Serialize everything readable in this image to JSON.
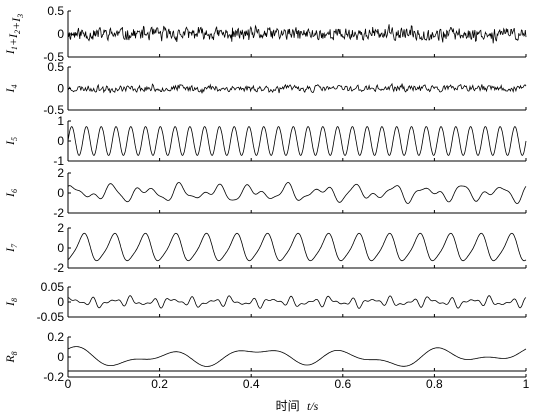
{
  "chart_data": {
    "type": "line",
    "xlabel": "时间",
    "xlabel_var": "t/s",
    "xlim": [
      0,
      1
    ],
    "x_ticks": [
      "0",
      "0.2",
      "0.4",
      "0.6",
      "0.8",
      "1"
    ],
    "x_tick_values": [
      0,
      0.2,
      0.4,
      0.6,
      0.8,
      1
    ],
    "grid": false,
    "panels": [
      {
        "ylabel": "I1+I2+I3",
        "ylabel_parts": [
          [
            "I",
            "1"
          ],
          [
            "+I",
            "2"
          ],
          [
            "+I",
            "3"
          ]
        ],
        "ylim": [
          -0.5,
          0.5
        ],
        "y_ticks": [
          "0.5",
          "0",
          "-0.5"
        ],
        "y_tick_values": [
          0.5,
          0,
          -0.5
        ],
        "signal": {
          "kind": "noise",
          "amplitude": 0.17,
          "n": 700,
          "seed": 11
        }
      },
      {
        "ylabel": "I4",
        "ylabel_parts": [
          [
            "I",
            "4"
          ]
        ],
        "ylim": [
          -0.5,
          0.5
        ],
        "y_ticks": [
          "0.5",
          "0",
          "-0.5"
        ],
        "y_tick_values": [
          0.5,
          0,
          -0.5
        ],
        "signal": {
          "kind": "noise",
          "amplitude": 0.1,
          "n": 500,
          "seed": 23
        }
      },
      {
        "ylabel": "I5",
        "ylabel_parts": [
          [
            "I",
            "5"
          ]
        ],
        "ylim": [
          -1,
          1
        ],
        "y_ticks": [
          "1",
          "0",
          "-1"
        ],
        "y_tick_values": [
          1,
          0,
          -1
        ],
        "signal": {
          "kind": "sine",
          "components": [
            [
              0.72,
              31,
              0.0
            ]
          ],
          "n": 900
        }
      },
      {
        "ylabel": "I6",
        "ylabel_parts": [
          [
            "I",
            "6"
          ]
        ],
        "ylim": [
          -2,
          2
        ],
        "y_ticks": [
          "2",
          "0",
          "-2"
        ],
        "y_tick_values": [
          2,
          0,
          -2
        ],
        "signal": {
          "kind": "sine",
          "components": [
            [
              0.55,
              13,
              0.3
            ],
            [
              0.35,
              21,
              1.1
            ],
            [
              0.2,
              33,
              2.0
            ]
          ],
          "n": 800
        }
      },
      {
        "ylabel": "I7",
        "ylabel_parts": [
          [
            "I",
            "7"
          ]
        ],
        "ylim": [
          -2,
          2
        ],
        "y_ticks": [
          "2",
          "0",
          "-2"
        ],
        "y_tick_values": [
          2,
          0,
          -2
        ],
        "signal": {
          "kind": "sine",
          "components": [
            [
              1.3,
              15,
              -1.57
            ],
            [
              0.25,
              30,
              0.5
            ]
          ],
          "n": 800
        }
      },
      {
        "ylabel": "I8",
        "ylabel_parts": [
          [
            "I",
            "8"
          ]
        ],
        "ylim": [
          -0.05,
          0.05
        ],
        "y_ticks": [
          "0.05",
          "0",
          "-0.05"
        ],
        "y_tick_values": [
          0.05,
          0,
          -0.05
        ],
        "signal": {
          "kind": "sine",
          "components": [
            [
              0.008,
              23,
              0.2
            ],
            [
              0.007,
              37,
              1.4
            ],
            [
              0.005,
              51,
              2.5
            ],
            [
              0.004,
              9,
              0.9
            ]
          ],
          "n": 800
        }
      },
      {
        "ylabel": "R8",
        "ylabel_parts": [
          [
            "R",
            "8"
          ]
        ],
        "ylim": [
          -0.2,
          0.2
        ],
        "y_ticks": [
          "0.2",
          "0",
          "-0.2"
        ],
        "y_tick_values": [
          0.2,
          0,
          -0.2
        ],
        "signal": {
          "kind": "sine",
          "components": [
            [
              0.06,
              5,
              1.2
            ],
            [
              0.035,
              9,
              0.2
            ],
            [
              0.025,
              2,
              2.4
            ]
          ],
          "n": 600
        }
      }
    ]
  }
}
